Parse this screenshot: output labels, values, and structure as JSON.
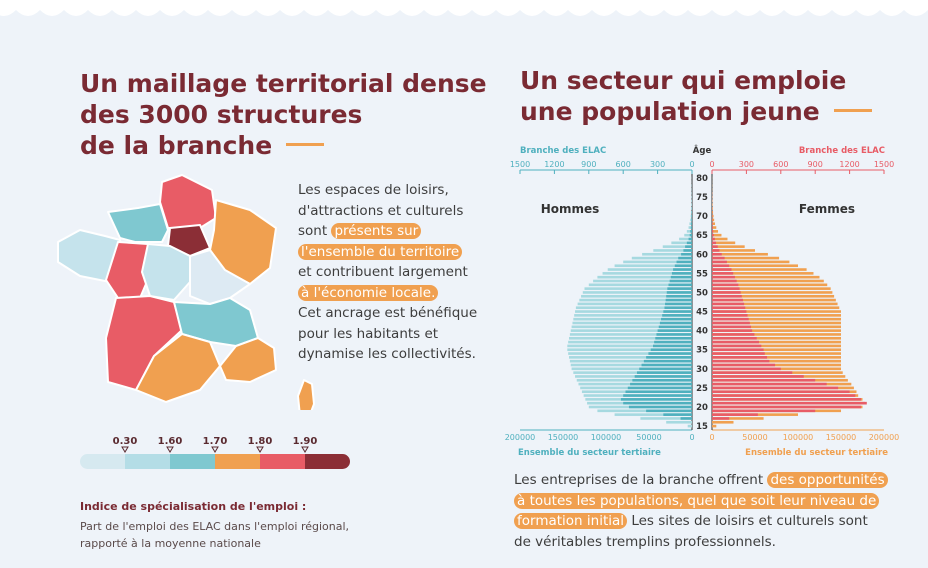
{
  "left": {
    "title": [
      "Un maillage territorial dense",
      "des 3000 structures",
      "de la branche"
    ],
    "text": {
      "p1": "Les espaces de loisirs,",
      "p2": "d'attractions et culturels",
      "p3": "sont ",
      "hl1": "présents sur",
      "hl2": "l'ensemble du territoire",
      "p4": "et contribuent largement",
      "hl3": "à l'économie locale.",
      "p5": "Cet ancrage est bénéfique",
      "p6": "pour les habitants et",
      "p7": "dynamise les collectivités."
    },
    "legend": {
      "ticks": [
        "0.30",
        "1.60",
        "1.70",
        "1.80",
        "1.90"
      ],
      "colors": [
        "#d6e9f0",
        "#b4dde6",
        "#7fc8d0",
        "#f0a050",
        "#e85c66",
        "#8b2e36"
      ],
      "title": "Indice de spécialisation de l'emploi :",
      "sub1": "Part de l'emploi des ELAC dans l'emploi régional,",
      "sub2": "rapporté à la moyenne nationale"
    }
  },
  "right": {
    "title": [
      "Un secteur qui emploie",
      "une population jeune"
    ],
    "text": {
      "p1": "Les entreprises de la branche offrent ",
      "hl1": "des opportunités",
      "hl2": "à toutes les populations, quel que soit leur niveau de",
      "hl3": "formation initial",
      "p2": " Les sites de loisirs et culturels sont",
      "p3": "de véritables tremplins professionnels."
    }
  },
  "chart_data": {
    "type": "bar",
    "orientation": "horizontal-pyramid",
    "age_label": "Âge",
    "group_left": "Hommes",
    "group_right": "Femmes",
    "top_axis_left_label": "Branche des ELAC",
    "top_axis_right_label": "Branche des ELAC",
    "bottom_axis_left_label": "Ensemble du secteur tertiaire",
    "bottom_axis_right_label": "Ensemble du secteur tertiaire",
    "top_ticks": [
      "1500",
      "1200",
      "900",
      "600",
      "300",
      "0"
    ],
    "top_ticks_right": [
      "0",
      "300",
      "600",
      "900",
      "1200",
      "1500"
    ],
    "bottom_ticks": [
      "200000",
      "150000",
      "100000",
      "50000",
      "0"
    ],
    "bottom_ticks_right": [
      "0",
      "50000",
      "100000",
      "150000",
      "200000"
    ],
    "age_ticks": [
      "80",
      "75",
      "70",
      "65",
      "60",
      "55",
      "50",
      "45",
      "40",
      "35",
      "30",
      "25",
      "20",
      "15"
    ],
    "ages": [
      15,
      16,
      17,
      18,
      19,
      20,
      21,
      22,
      23,
      24,
      25,
      26,
      27,
      28,
      29,
      30,
      31,
      32,
      33,
      34,
      35,
      36,
      37,
      38,
      39,
      40,
      41,
      42,
      43,
      44,
      45,
      46,
      47,
      48,
      49,
      50,
      51,
      52,
      53,
      54,
      55,
      56,
      57,
      58,
      59,
      60,
      61,
      62,
      63,
      64,
      65,
      66,
      67,
      68,
      69,
      70,
      71,
      72,
      73,
      74,
      75,
      76,
      77,
      78,
      79,
      80
    ],
    "series": [
      {
        "name": "Hommes - Ensemble du secteur tertiaire",
        "values": [
          5000,
          30000,
          60000,
          90000,
          110000,
          120000,
          122000,
          124000,
          126000,
          128000,
          130000,
          132000,
          134000,
          136000,
          138000,
          140000,
          141000,
          142000,
          143000,
          144000,
          145000,
          145000,
          144000,
          143000,
          142000,
          141000,
          140000,
          139000,
          138000,
          137000,
          136000,
          135000,
          133000,
          131000,
          129000,
          127000,
          125000,
          120000,
          115000,
          110000,
          104000,
          98000,
          90000,
          80000,
          70000,
          58000,
          45000,
          34000,
          24000,
          15000,
          9000,
          6000,
          4000,
          3000,
          2000,
          1500,
          1000,
          800,
          600,
          500,
          400,
          300,
          200,
          200,
          100,
          100
        ]
      },
      {
        "name": "Hommes - Branche des ELAC",
        "values": [
          0,
          0,
          100,
          250,
          400,
          550,
          600,
          620,
          600,
          580,
          560,
          540,
          520,
          500,
          480,
          460,
          440,
          420,
          400,
          380,
          360,
          340,
          330,
          320,
          310,
          300,
          290,
          280,
          270,
          260,
          250,
          240,
          235,
          230,
          225,
          220,
          215,
          205,
          195,
          185,
          175,
          165,
          150,
          135,
          120,
          95,
          75,
          60,
          45,
          30,
          20,
          15,
          10,
          8,
          6,
          5,
          4,
          3,
          2,
          2,
          1,
          1,
          1,
          1,
          0,
          0
        ]
      },
      {
        "name": "Femmes - Ensemble du secteur tertiaire",
        "values": [
          5000,
          25000,
          60000,
          100000,
          150000,
          175000,
          178000,
          175000,
          170000,
          168000,
          165000,
          162000,
          158000,
          155000,
          152000,
          150000,
          150000,
          150000,
          150000,
          150000,
          150000,
          150000,
          150000,
          150000,
          150000,
          150000,
          150000,
          150000,
          150000,
          150000,
          150000,
          148000,
          146000,
          144000,
          142000,
          140000,
          138000,
          134000,
          130000,
          125000,
          118000,
          110000,
          100000,
          90000,
          78000,
          65000,
          50000,
          38000,
          27000,
          18000,
          11000,
          7000,
          5000,
          3500,
          2500,
          1800,
          1200,
          900,
          700,
          500,
          400,
          300,
          200,
          200,
          100,
          100
        ]
      },
      {
        "name": "Femmes - Branche des ELAC",
        "values": [
          0,
          0,
          150,
          400,
          900,
          1300,
          1350,
          1300,
          1250,
          1200,
          1100,
          1000,
          900,
          800,
          700,
          600,
          550,
          500,
          480,
          460,
          450,
          430,
          410,
          390,
          370,
          350,
          340,
          330,
          320,
          310,
          300,
          290,
          280,
          270,
          260,
          250,
          240,
          230,
          215,
          200,
          185,
          170,
          150,
          130,
          110,
          85,
          65,
          50,
          35,
          25,
          15,
          10,
          8,
          6,
          4,
          3,
          2,
          2,
          1,
          1,
          1,
          1,
          0,
          0,
          0,
          0
        ]
      }
    ]
  }
}
